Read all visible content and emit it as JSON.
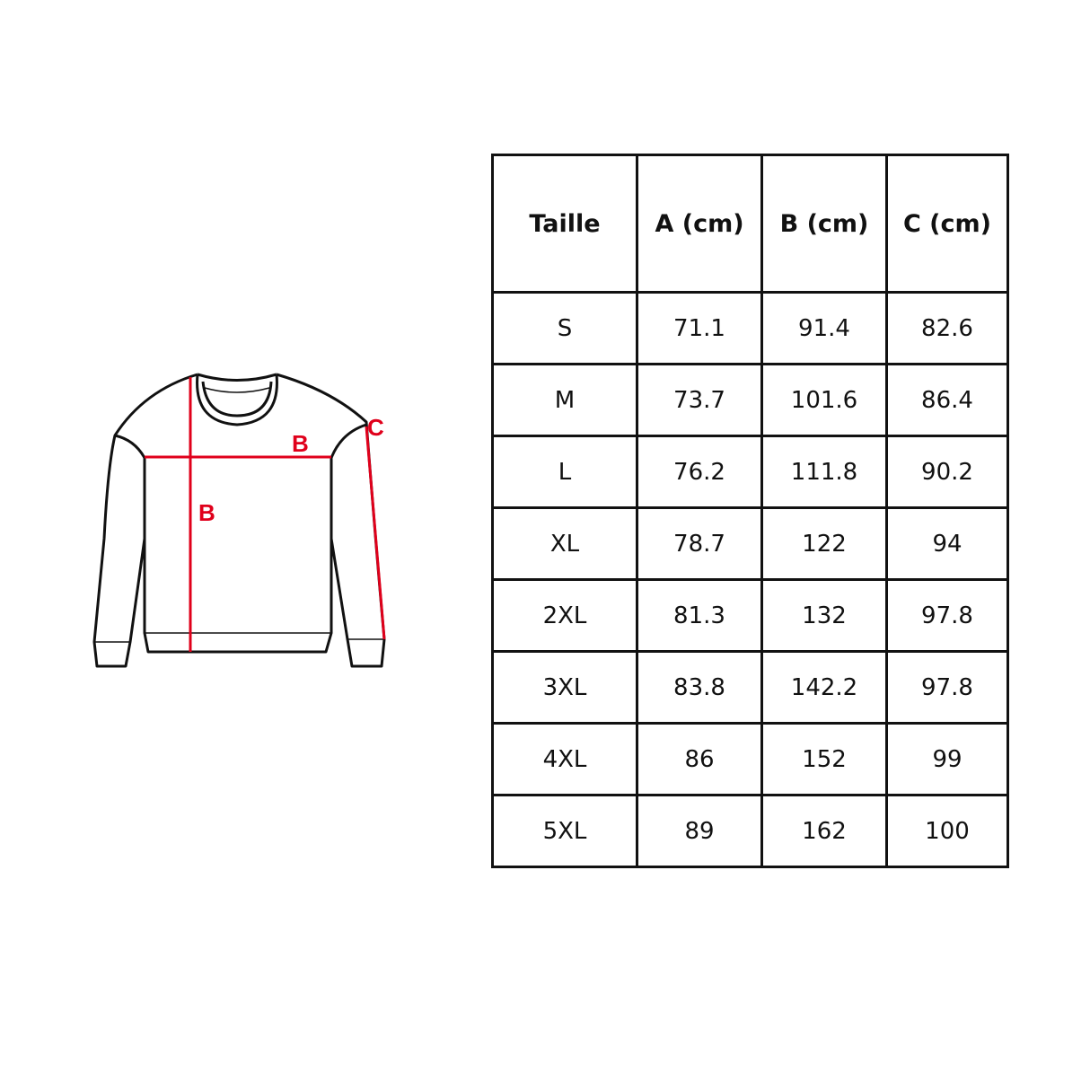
{
  "diagram": {
    "labels": {
      "width": "B",
      "length": "B",
      "sleeve": "C"
    },
    "colors": {
      "outline": "#111111",
      "measure": "#e0001b"
    }
  },
  "table": {
    "headers": [
      "Taille",
      "A (cm)",
      "B (cm)",
      "C (cm)"
    ],
    "rows": [
      [
        "S",
        "71.1",
        "91.4",
        "82.6"
      ],
      [
        "M",
        "73.7",
        "101.6",
        "86.4"
      ],
      [
        "L",
        "76.2",
        "111.8",
        "90.2"
      ],
      [
        "XL",
        "78.7",
        "122",
        "94"
      ],
      [
        "2XL",
        "81.3",
        "132",
        "97.8"
      ],
      [
        "3XL",
        "83.8",
        "142.2",
        "97.8"
      ],
      [
        "4XL",
        "86",
        "152",
        "99"
      ],
      [
        "5XL",
        "89",
        "162",
        "100"
      ]
    ]
  }
}
